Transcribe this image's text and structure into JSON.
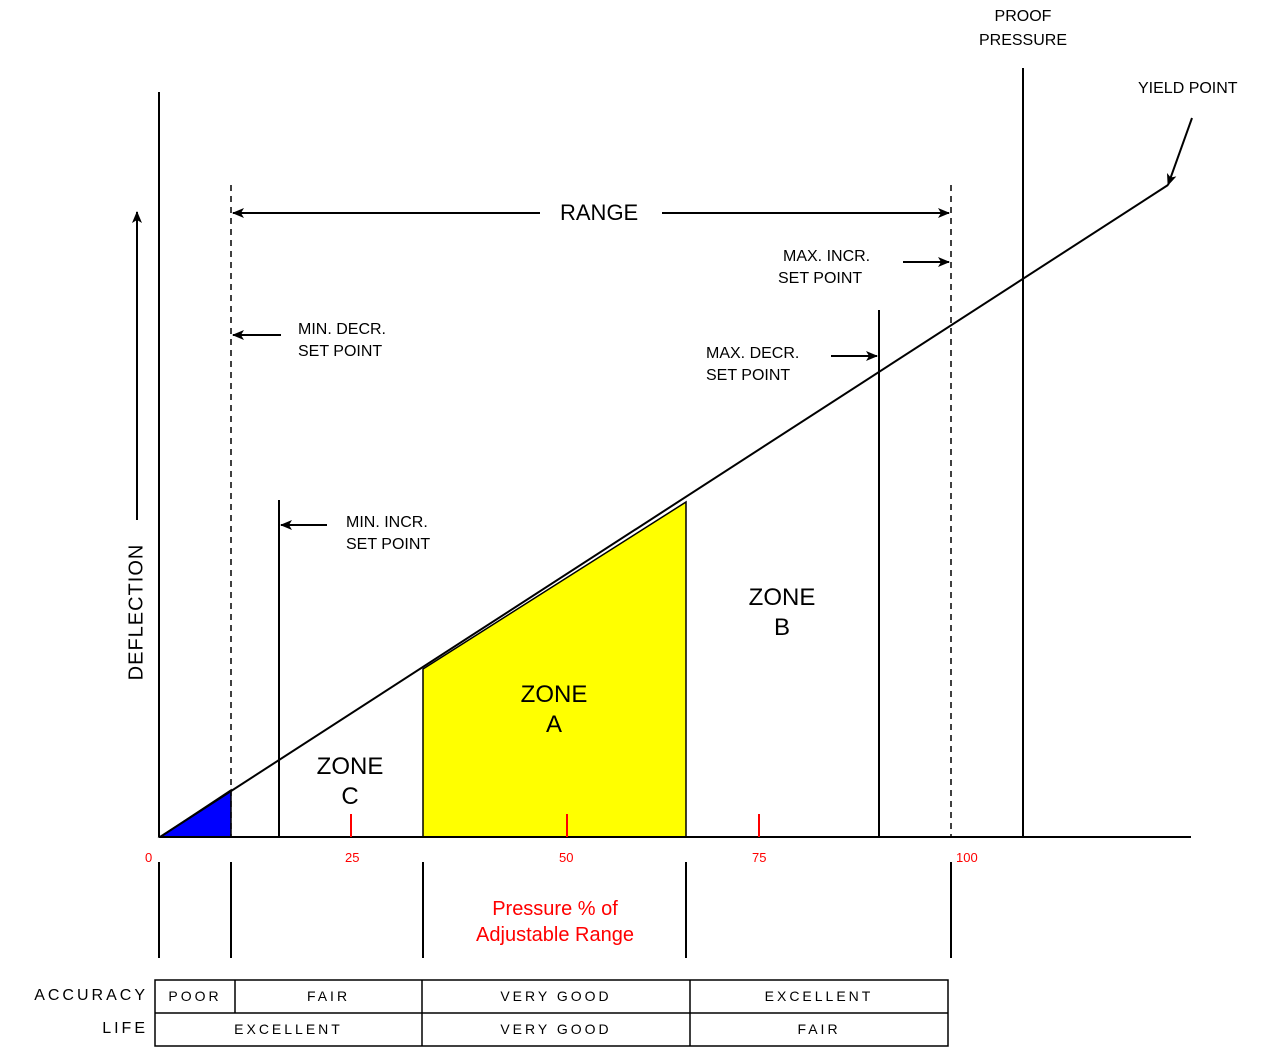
{
  "axis": {
    "y_label": "DEFLECTION",
    "x_title_line1": "Pressure % of",
    "x_title_line2": "Adjustable Range",
    "ticks": [
      "0",
      "25",
      "50",
      "75",
      "100"
    ]
  },
  "annotations": {
    "range": "RANGE",
    "proof_pressure_1": "PROOF",
    "proof_pressure_2": "PRESSURE",
    "yield_point": "YIELD POINT",
    "max_incr_1": "MAX. INCR.",
    "max_incr_2": "SET POINT",
    "max_decr_1": "MAX. DECR.",
    "max_decr_2": "SET POINT",
    "min_decr_1": "MIN. DECR.",
    "min_decr_2": "SET POINT",
    "min_incr_1": "MIN. INCR.",
    "min_incr_2": "SET POINT"
  },
  "zones": {
    "a_1": "ZONE",
    "a_2": "A",
    "b_1": "ZONE",
    "b_2": "B",
    "c_1": "ZONE",
    "c_2": "C"
  },
  "table": {
    "accuracy_label": "ACCURACY",
    "life_label": "LIFE",
    "accuracy": [
      "POOR",
      "FAIR",
      "VERY GOOD",
      "EXCELLENT"
    ],
    "life": [
      "EXCELLENT",
      "VERY GOOD",
      "FAIR"
    ]
  },
  "colors": {
    "zone_a_fill": "#ffff00",
    "low_fill": "#0000ff",
    "accent_red": "#ff0000"
  }
}
